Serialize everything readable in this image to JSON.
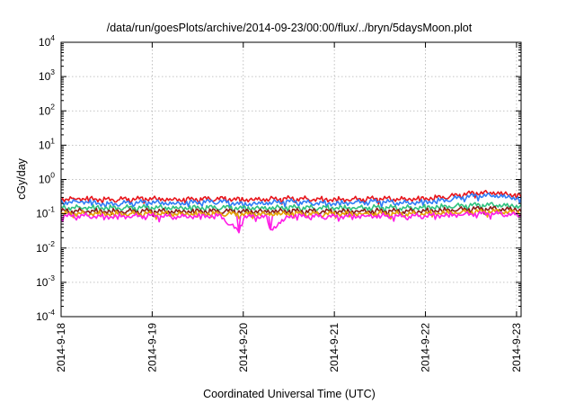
{
  "chart_data": {
    "type": "line",
    "title": "/data/run/goesPlots/archive/2014-09-23/00:00/flux/../bryn/5daysMoon.plot",
    "xlabel": "Coordinated Universal Time (UTC)",
    "ylabel": "cGy/day",
    "yscale": "log",
    "ylim": [
      0.0001,
      10000
    ],
    "xlim": [
      0,
      5.05
    ],
    "grid": true,
    "legend": "none",
    "x_tick_labels": [
      "2014-9-18",
      "2014-9-19",
      "2014-9-20",
      "2014-9-21",
      "2014-9-22",
      "2014-9-23"
    ],
    "x_tick_values": [
      0,
      1,
      2,
      3,
      4,
      5
    ],
    "y_ticks": [
      {
        "base": "10",
        "exp": "-4",
        "value": 0.0001
      },
      {
        "base": "10",
        "exp": "-3",
        "value": 0.001
      },
      {
        "base": "10",
        "exp": "-2",
        "value": 0.01
      },
      {
        "base": "10",
        "exp": "-1",
        "value": 0.1
      },
      {
        "base": "10",
        "exp": "0",
        "value": 1
      },
      {
        "base": "10",
        "exp": "1",
        "value": 10
      },
      {
        "base": "10",
        "exp": "2",
        "value": 100
      },
      {
        "base": "10",
        "exp": "3",
        "value": 1000
      },
      {
        "base": "10",
        "exp": "4",
        "value": 10000
      }
    ],
    "series": [
      {
        "color": "#e8151b",
        "x": [
          0,
          0.25,
          0.5,
          0.75,
          1,
          1.25,
          1.5,
          1.75,
          2,
          2.25,
          2.5,
          2.75,
          3,
          3.25,
          3.5,
          3.75,
          4,
          4.25,
          4.5,
          4.75,
          5,
          5.05
        ],
        "values": [
          0.27,
          0.28,
          0.26,
          0.27,
          0.28,
          0.26,
          0.27,
          0.28,
          0.26,
          0.27,
          0.28,
          0.27,
          0.26,
          0.27,
          0.28,
          0.27,
          0.28,
          0.32,
          0.4,
          0.42,
          0.35,
          0.32
        ]
      },
      {
        "color": "#2f7df6",
        "x": [
          0,
          0.25,
          0.5,
          0.75,
          1,
          1.25,
          1.5,
          1.75,
          2,
          2.25,
          2.5,
          2.75,
          3,
          3.25,
          3.5,
          3.75,
          4,
          4.25,
          4.5,
          4.75,
          5,
          5.05
        ],
        "values": [
          0.22,
          0.23,
          0.19,
          0.21,
          0.22,
          0.2,
          0.22,
          0.23,
          0.19,
          0.21,
          0.23,
          0.21,
          0.2,
          0.22,
          0.23,
          0.21,
          0.22,
          0.26,
          0.33,
          0.35,
          0.29,
          0.26
        ]
      },
      {
        "color": "#2ec27e",
        "x": [
          0,
          0.25,
          0.5,
          0.75,
          1,
          1.25,
          1.5,
          1.75,
          2,
          2.25,
          2.5,
          2.75,
          3,
          3.25,
          3.5,
          3.75,
          4,
          4.25,
          4.5,
          4.75,
          5,
          5.05
        ],
        "values": [
          0.15,
          0.155,
          0.15,
          0.152,
          0.155,
          0.15,
          0.152,
          0.155,
          0.148,
          0.15,
          0.155,
          0.152,
          0.15,
          0.152,
          0.155,
          0.15,
          0.155,
          0.165,
          0.18,
          0.185,
          0.17,
          0.165
        ]
      },
      {
        "color": "#8b1a1a",
        "x": [
          0,
          0.25,
          0.5,
          0.75,
          1,
          1.25,
          1.5,
          1.75,
          2,
          2.25,
          2.5,
          2.75,
          3,
          3.25,
          3.5,
          3.75,
          4,
          4.25,
          4.5,
          4.75,
          5,
          5.05
        ],
        "values": [
          0.12,
          0.122,
          0.118,
          0.12,
          0.122,
          0.118,
          0.12,
          0.122,
          0.117,
          0.12,
          0.122,
          0.12,
          0.118,
          0.12,
          0.122,
          0.12,
          0.122,
          0.13,
          0.14,
          0.142,
          0.135,
          0.13
        ]
      },
      {
        "color": "#e6a200",
        "x": [
          0,
          0.25,
          0.5,
          0.75,
          1,
          1.25,
          1.5,
          1.75,
          2,
          2.25,
          2.5,
          2.75,
          3,
          3.25,
          3.5,
          3.75,
          4,
          4.25,
          4.5,
          4.75,
          5,
          5.05
        ],
        "values": [
          0.1,
          0.102,
          0.1,
          0.1,
          0.102,
          0.1,
          0.1,
          0.102,
          0.098,
          0.1,
          0.102,
          0.1,
          0.1,
          0.1,
          0.102,
          0.1,
          0.102,
          0.108,
          0.115,
          0.118,
          0.112,
          0.108
        ]
      },
      {
        "color": "#ff1ce6",
        "x": [
          0,
          0.25,
          0.5,
          0.75,
          1,
          1.25,
          1.5,
          1.75,
          1.95,
          2,
          2.25,
          2.3,
          2.5,
          2.75,
          3,
          3.25,
          3.5,
          3.75,
          4,
          4.25,
          4.5,
          4.75,
          5,
          5.05
        ],
        "values": [
          0.085,
          0.088,
          0.082,
          0.086,
          0.088,
          0.083,
          0.086,
          0.088,
          0.03,
          0.082,
          0.084,
          0.034,
          0.087,
          0.085,
          0.083,
          0.086,
          0.088,
          0.084,
          0.088,
          0.092,
          0.1,
          0.102,
          0.095,
          0.092
        ]
      }
    ]
  }
}
